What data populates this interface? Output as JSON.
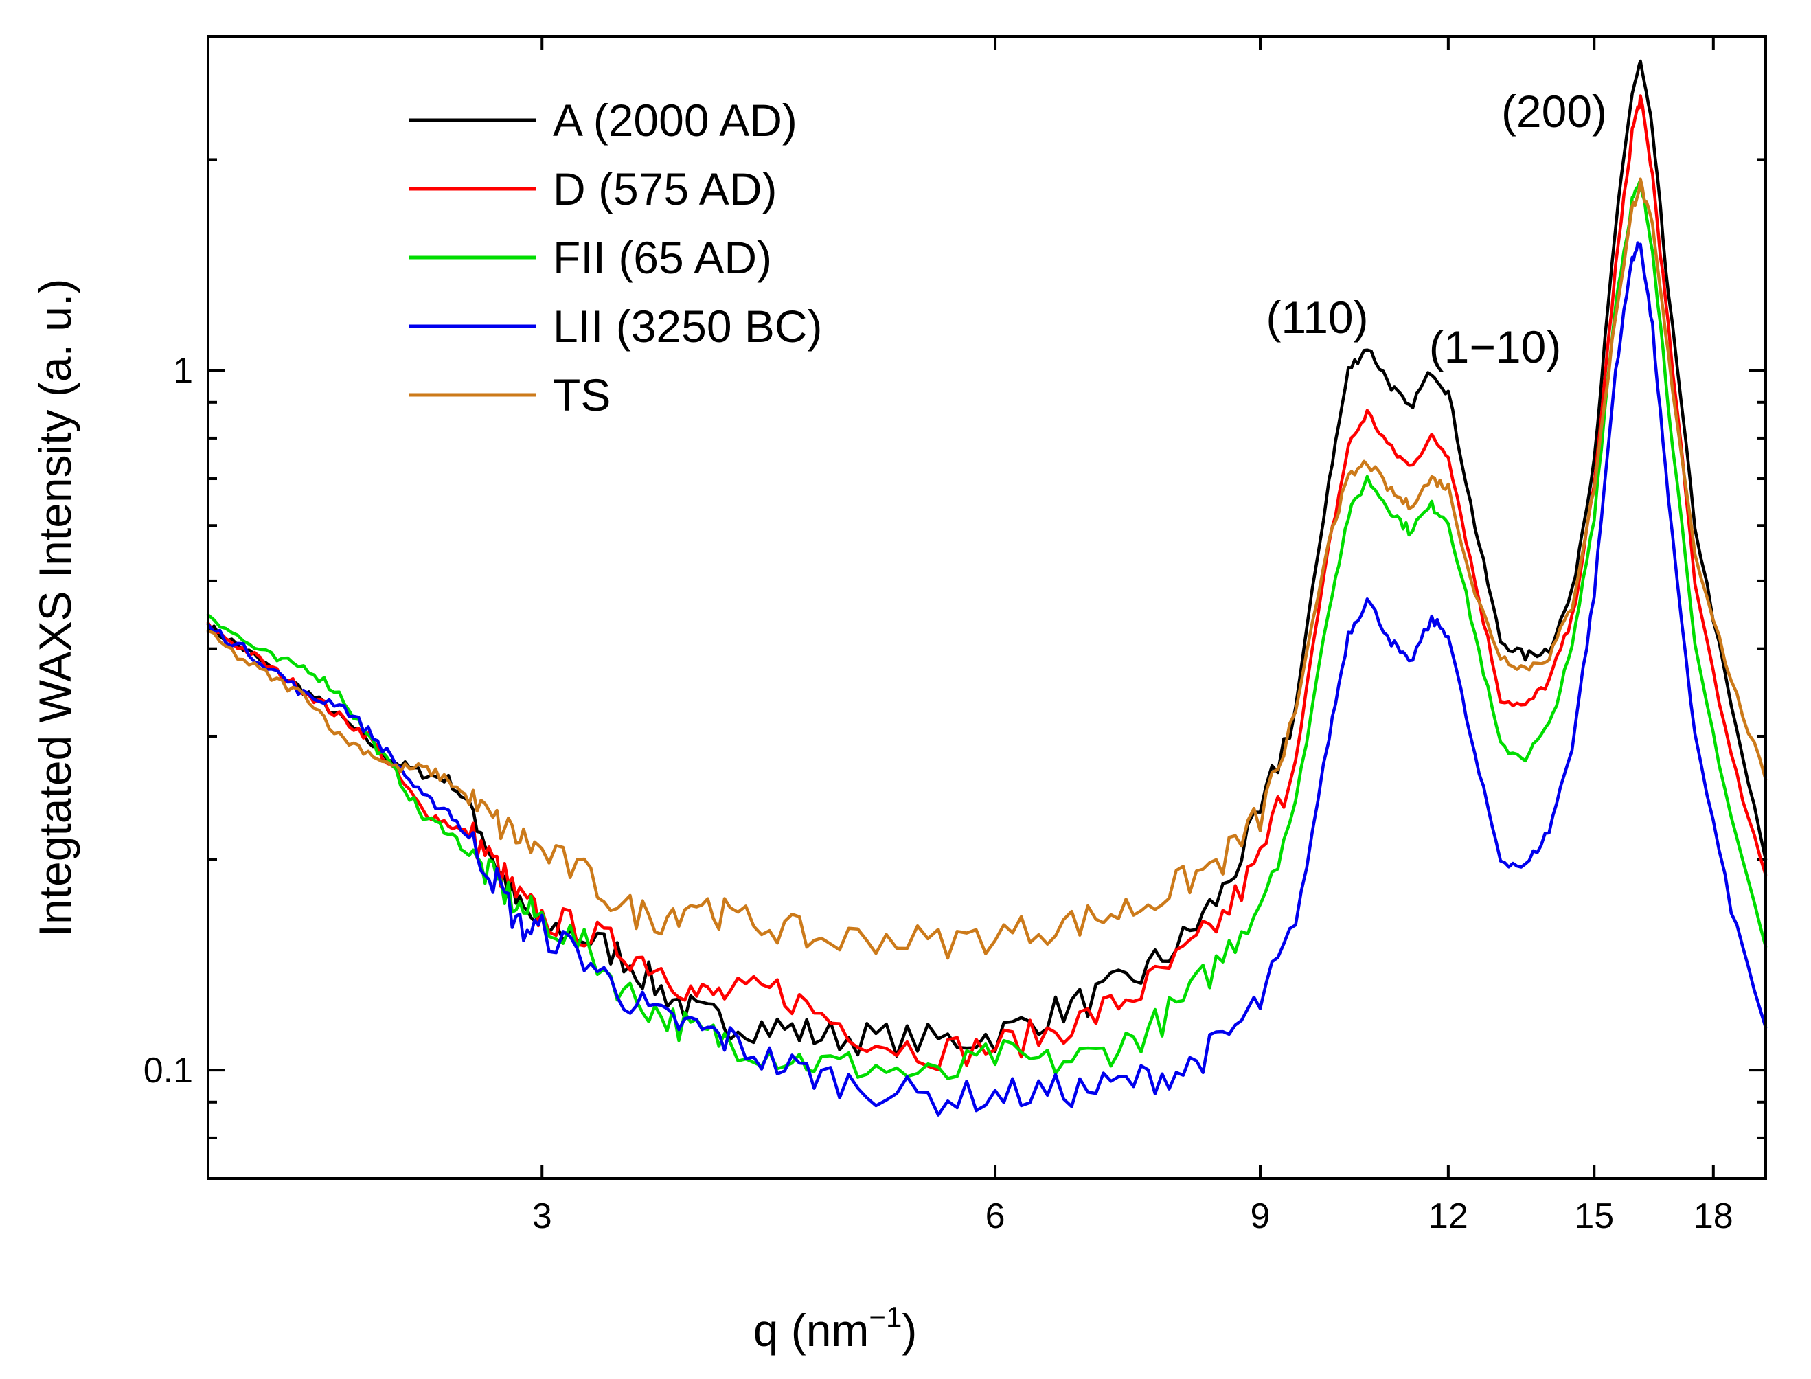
{
  "chart_data": {
    "type": "line",
    "xlabel": "q (nm",
    "xlabel_sup": "−1",
    "xlabel_close": ")",
    "ylabel": "Integtated WAXS Intensity (a. u.)",
    "x_scale": "log",
    "y_scale": "log",
    "xlim": [
      1.8,
      19.5
    ],
    "ylim": [
      0.07,
      3.0
    ],
    "x_ticks": [
      3,
      6,
      9,
      12,
      15,
      18
    ],
    "y_ticks": [
      0.1,
      1
    ],
    "legend_position": "top-left",
    "grid": false,
    "peak_annotations": [
      {
        "text": "(110)",
        "x": 10.6,
        "y": 1.3
      },
      {
        "text": "(1−10)",
        "x": 12.5,
        "y": 1.05
      },
      {
        "text": "(200)",
        "x": 15.0,
        "y": 2.2
      }
    ],
    "series": [
      {
        "name": "A (2000 AD)",
        "color": "#000000",
        "points": [
          [
            1.8,
            0.43
          ],
          [
            1.9,
            0.4
          ],
          [
            2.0,
            0.37
          ],
          [
            2.1,
            0.345
          ],
          [
            2.2,
            0.32
          ],
          [
            2.3,
            0.295
          ],
          [
            2.4,
            0.275
          ],
          [
            2.5,
            0.265
          ],
          [
            2.6,
            0.26
          ],
          [
            2.7,
            0.235
          ],
          [
            2.8,
            0.195
          ],
          [
            2.9,
            0.17
          ],
          [
            3.0,
            0.16
          ],
          [
            3.2,
            0.155
          ],
          [
            3.4,
            0.145
          ],
          [
            3.6,
            0.13
          ],
          [
            3.8,
            0.12
          ],
          [
            4.0,
            0.117
          ],
          [
            4.3,
            0.115
          ],
          [
            4.6,
            0.112
          ],
          [
            5.0,
            0.111
          ],
          [
            5.5,
            0.11
          ],
          [
            6.0,
            0.112
          ],
          [
            6.5,
            0.12
          ],
          [
            7.0,
            0.127
          ],
          [
            7.5,
            0.137
          ],
          [
            8.0,
            0.153
          ],
          [
            8.5,
            0.18
          ],
          [
            9.0,
            0.23
          ],
          [
            9.5,
            0.33
          ],
          [
            10.0,
            0.7
          ],
          [
            10.3,
            1.0
          ],
          [
            10.6,
            1.08
          ],
          [
            11.0,
            0.95
          ],
          [
            11.3,
            0.88
          ],
          [
            11.7,
            1.0
          ],
          [
            12.0,
            0.93
          ],
          [
            12.5,
            0.6
          ],
          [
            13.0,
            0.41
          ],
          [
            13.5,
            0.39
          ],
          [
            14.0,
            0.4
          ],
          [
            14.5,
            0.48
          ],
          [
            15.0,
            0.75
          ],
          [
            15.5,
            1.6
          ],
          [
            15.9,
            2.5
          ],
          [
            16.1,
            2.75
          ],
          [
            16.4,
            2.2
          ],
          [
            16.8,
            1.3
          ],
          [
            17.5,
            0.6
          ],
          [
            18.5,
            0.33
          ],
          [
            19.5,
            0.2
          ]
        ]
      },
      {
        "name": "D (575 AD)",
        "color": "#ff0000",
        "points": [
          [
            1.8,
            0.43
          ],
          [
            1.9,
            0.4
          ],
          [
            2.0,
            0.37
          ],
          [
            2.1,
            0.345
          ],
          [
            2.2,
            0.32
          ],
          [
            2.3,
            0.3
          ],
          [
            2.4,
            0.265
          ],
          [
            2.5,
            0.235
          ],
          [
            2.6,
            0.225
          ],
          [
            2.7,
            0.215
          ],
          [
            2.8,
            0.195
          ],
          [
            2.9,
            0.175
          ],
          [
            3.0,
            0.165
          ],
          [
            3.2,
            0.158
          ],
          [
            3.4,
            0.148
          ],
          [
            3.6,
            0.14
          ],
          [
            3.8,
            0.128
          ],
          [
            4.0,
            0.128
          ],
          [
            4.3,
            0.13
          ],
          [
            4.6,
            0.12
          ],
          [
            5.0,
            0.11
          ],
          [
            5.5,
            0.106
          ],
          [
            6.0,
            0.108
          ],
          [
            6.5,
            0.113
          ],
          [
            7.0,
            0.12
          ],
          [
            7.5,
            0.13
          ],
          [
            8.0,
            0.145
          ],
          [
            8.5,
            0.165
          ],
          [
            9.0,
            0.2
          ],
          [
            9.5,
            0.28
          ],
          [
            10.0,
            0.56
          ],
          [
            10.3,
            0.78
          ],
          [
            10.6,
            0.87
          ],
          [
            11.0,
            0.77
          ],
          [
            11.3,
            0.73
          ],
          [
            11.7,
            0.8
          ],
          [
            12.0,
            0.76
          ],
          [
            12.5,
            0.5
          ],
          [
            13.0,
            0.34
          ],
          [
            13.5,
            0.33
          ],
          [
            14.0,
            0.36
          ],
          [
            14.5,
            0.44
          ],
          [
            15.0,
            0.68
          ],
          [
            15.5,
            1.4
          ],
          [
            15.9,
            2.2
          ],
          [
            16.1,
            2.45
          ],
          [
            16.4,
            1.9
          ],
          [
            16.8,
            1.15
          ],
          [
            17.5,
            0.5
          ],
          [
            18.5,
            0.28
          ],
          [
            19.5,
            0.19
          ]
        ]
      },
      {
        "name": "FII (65 AD)",
        "color": "#00dd00",
        "points": [
          [
            1.8,
            0.45
          ],
          [
            1.9,
            0.41
          ],
          [
            2.0,
            0.385
          ],
          [
            2.1,
            0.375
          ],
          [
            2.2,
            0.345
          ],
          [
            2.3,
            0.3
          ],
          [
            2.4,
            0.265
          ],
          [
            2.5,
            0.23
          ],
          [
            2.6,
            0.22
          ],
          [
            2.7,
            0.2
          ],
          [
            2.8,
            0.185
          ],
          [
            2.9,
            0.17
          ],
          [
            3.0,
            0.165
          ],
          [
            3.2,
            0.15
          ],
          [
            3.4,
            0.13
          ],
          [
            3.6,
            0.12
          ],
          [
            3.8,
            0.113
          ],
          [
            4.0,
            0.11
          ],
          [
            4.3,
            0.105
          ],
          [
            4.6,
            0.102
          ],
          [
            5.0,
            0.101
          ],
          [
            5.5,
            0.097
          ],
          [
            6.0,
            0.105
          ],
          [
            6.5,
            0.102
          ],
          [
            7.0,
            0.105
          ],
          [
            7.5,
            0.112
          ],
          [
            8.0,
            0.125
          ],
          [
            8.5,
            0.145
          ],
          [
            9.0,
            0.175
          ],
          [
            9.5,
            0.24
          ],
          [
            10.0,
            0.46
          ],
          [
            10.3,
            0.62
          ],
          [
            10.6,
            0.7
          ],
          [
            11.0,
            0.63
          ],
          [
            11.3,
            0.59
          ],
          [
            11.7,
            0.64
          ],
          [
            12.0,
            0.61
          ],
          [
            12.5,
            0.42
          ],
          [
            13.0,
            0.29
          ],
          [
            13.5,
            0.28
          ],
          [
            14.0,
            0.31
          ],
          [
            14.5,
            0.4
          ],
          [
            15.0,
            0.62
          ],
          [
            15.5,
            1.25
          ],
          [
            15.9,
            1.75
          ],
          [
            16.1,
            1.85
          ],
          [
            16.4,
            1.5
          ],
          [
            16.8,
            0.9
          ],
          [
            17.5,
            0.4
          ],
          [
            18.5,
            0.23
          ],
          [
            19.5,
            0.15
          ]
        ]
      },
      {
        "name": "LII (3250 BC)",
        "color": "#0000ee",
        "points": [
          [
            1.8,
            0.43
          ],
          [
            1.9,
            0.4
          ],
          [
            2.0,
            0.37
          ],
          [
            2.1,
            0.34
          ],
          [
            2.2,
            0.335
          ],
          [
            2.3,
            0.305
          ],
          [
            2.4,
            0.275
          ],
          [
            2.5,
            0.245
          ],
          [
            2.6,
            0.235
          ],
          [
            2.7,
            0.21
          ],
          [
            2.8,
            0.185
          ],
          [
            2.9,
            0.16
          ],
          [
            3.0,
            0.158
          ],
          [
            3.2,
            0.145
          ],
          [
            3.4,
            0.128
          ],
          [
            3.6,
            0.118
          ],
          [
            3.8,
            0.115
          ],
          [
            4.0,
            0.11
          ],
          [
            4.3,
            0.102
          ],
          [
            4.6,
            0.098
          ],
          [
            5.0,
            0.094
          ],
          [
            5.5,
            0.091
          ],
          [
            6.0,
            0.092
          ],
          [
            6.5,
            0.093
          ],
          [
            7.0,
            0.094
          ],
          [
            7.5,
            0.097
          ],
          [
            8.0,
            0.1
          ],
          [
            8.5,
            0.11
          ],
          [
            9.0,
            0.125
          ],
          [
            9.5,
            0.16
          ],
          [
            10.0,
            0.3
          ],
          [
            10.3,
            0.42
          ],
          [
            10.6,
            0.47
          ],
          [
            11.0,
            0.41
          ],
          [
            11.3,
            0.38
          ],
          [
            11.7,
            0.44
          ],
          [
            12.0,
            0.42
          ],
          [
            12.5,
            0.28
          ],
          [
            13.0,
            0.2
          ],
          [
            13.5,
            0.195
          ],
          [
            14.0,
            0.22
          ],
          [
            14.5,
            0.29
          ],
          [
            15.0,
            0.48
          ],
          [
            15.5,
            1.0
          ],
          [
            15.9,
            1.45
          ],
          [
            16.1,
            1.52
          ],
          [
            16.4,
            1.15
          ],
          [
            16.8,
            0.65
          ],
          [
            17.5,
            0.3
          ],
          [
            18.5,
            0.17
          ],
          [
            19.5,
            0.115
          ]
        ]
      },
      {
        "name": "TS",
        "color": "#cc7a1a",
        "points": [
          [
            1.8,
            0.42
          ],
          [
            1.9,
            0.385
          ],
          [
            2.0,
            0.36
          ],
          [
            2.1,
            0.34
          ],
          [
            2.2,
            0.3
          ],
          [
            2.3,
            0.285
          ],
          [
            2.4,
            0.27
          ],
          [
            2.5,
            0.27
          ],
          [
            2.6,
            0.26
          ],
          [
            2.7,
            0.24
          ],
          [
            2.8,
            0.225
          ],
          [
            2.9,
            0.215
          ],
          [
            3.0,
            0.205
          ],
          [
            3.2,
            0.19
          ],
          [
            3.4,
            0.17
          ],
          [
            3.6,
            0.165
          ],
          [
            3.8,
            0.175
          ],
          [
            4.0,
            0.165
          ],
          [
            4.3,
            0.16
          ],
          [
            4.6,
            0.153
          ],
          [
            5.0,
            0.155
          ],
          [
            5.5,
            0.152
          ],
          [
            6.0,
            0.156
          ],
          [
            6.5,
            0.16
          ],
          [
            7.0,
            0.165
          ],
          [
            7.5,
            0.172
          ],
          [
            8.0,
            0.185
          ],
          [
            8.5,
            0.2
          ],
          [
            9.0,
            0.23
          ],
          [
            9.5,
            0.32
          ],
          [
            10.0,
            0.58
          ],
          [
            10.3,
            0.7
          ],
          [
            10.6,
            0.74
          ],
          [
            11.0,
            0.67
          ],
          [
            11.3,
            0.64
          ],
          [
            11.7,
            0.7
          ],
          [
            12.0,
            0.68
          ],
          [
            12.5,
            0.48
          ],
          [
            13.0,
            0.39
          ],
          [
            13.5,
            0.375
          ],
          [
            14.0,
            0.39
          ],
          [
            14.5,
            0.46
          ],
          [
            15.0,
            0.68
          ],
          [
            15.5,
            1.2
          ],
          [
            15.9,
            1.7
          ],
          [
            16.1,
            1.85
          ],
          [
            16.4,
            1.6
          ],
          [
            16.8,
            1.05
          ],
          [
            17.5,
            0.55
          ],
          [
            18.5,
            0.36
          ],
          [
            19.5,
            0.26
          ]
        ]
      }
    ]
  }
}
